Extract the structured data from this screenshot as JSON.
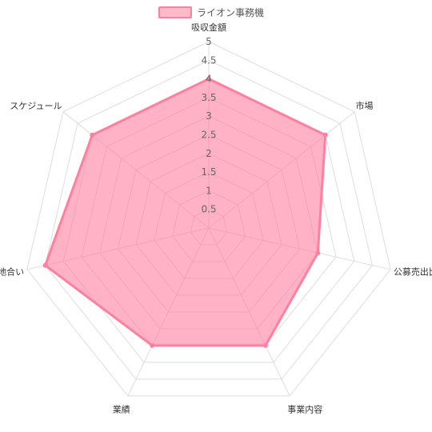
{
  "chart_data": {
    "type": "radar",
    "categories": [
      "吸収金額",
      "市場",
      "公募売出比",
      "事業内容",
      "業績",
      "地合い",
      "スケジュール"
    ],
    "series": [
      {
        "name": "ライオン事務機",
        "values": [
          4,
          4,
          3,
          3.5,
          3.5,
          4.5,
          4
        ],
        "color": "#ff7f9e"
      }
    ],
    "rlim": [
      0,
      5
    ],
    "ticks": [
      "0.5",
      "1",
      "1.5",
      "2",
      "2.5",
      "3",
      "3.5",
      "4",
      "4.5",
      "5"
    ],
    "grid": true,
    "legend": "top"
  }
}
